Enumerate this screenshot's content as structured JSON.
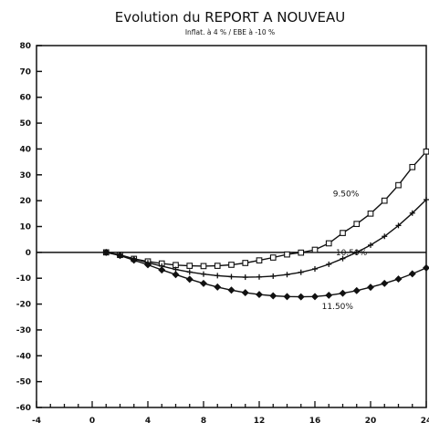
{
  "chart_data": {
    "type": "line",
    "title": "Evolution du REPORT A NOUVEAU",
    "subtitle": "Inflat. à 4 % / EBE à -10 %",
    "xlabel": "",
    "ylabel": "",
    "xlim": [
      -4,
      24
    ],
    "ylim": [
      -60,
      80
    ],
    "xticks": [
      -4,
      0,
      4,
      8,
      12,
      16,
      20,
      24
    ],
    "yticks": [
      -60,
      -50,
      -40,
      -30,
      -20,
      -10,
      0,
      10,
      20,
      30,
      40,
      50,
      60,
      70,
      80
    ],
    "grid": false,
    "legend": "none",
    "series": [
      {
        "name": "9.50%",
        "marker": "square",
        "x": [
          1,
          2,
          3,
          4,
          5,
          6,
          7,
          8,
          9,
          10,
          11,
          12,
          13,
          14,
          15,
          16,
          17,
          18,
          19,
          20,
          21,
          22,
          23,
          24
        ],
        "values": [
          0,
          -1,
          -2.5,
          -3.5,
          -4.3,
          -4.9,
          -5.2,
          -5.3,
          -5.2,
          -4.8,
          -4.1,
          -3.1,
          -2,
          -0.8,
          -0.1,
          1,
          3.5,
          7.5,
          11,
          15,
          20,
          26,
          33,
          39
        ]
      },
      {
        "name": "10.50%",
        "marker": "plus",
        "x": [
          1,
          2,
          3,
          4,
          5,
          6,
          7,
          8,
          9,
          10,
          11,
          12,
          13,
          14,
          15,
          16,
          17,
          18,
          19,
          20,
          21,
          22,
          23,
          24
        ],
        "values": [
          0,
          -1,
          -2.5,
          -4,
          -5.3,
          -6.6,
          -7.6,
          -8.4,
          -9,
          -9.4,
          -9.6,
          -9.5,
          -9.2,
          -8.6,
          -7.7,
          -6.4,
          -4.6,
          -2.4,
          0,
          2.8,
          6.2,
          10.4,
          15.2,
          20.4
        ]
      },
      {
        "name": "11.50%",
        "marker": "diamond",
        "x": [
          1,
          2,
          3,
          4,
          5,
          6,
          7,
          8,
          9,
          10,
          11,
          12,
          13,
          14,
          15,
          16,
          17,
          18,
          19,
          20,
          21,
          22,
          23,
          24
        ],
        "values": [
          0,
          -1.2,
          -3,
          -4.8,
          -6.8,
          -8.6,
          -10.4,
          -12,
          -13.4,
          -14.6,
          -15.6,
          -16.3,
          -16.8,
          -17.1,
          -17.2,
          -17.1,
          -16.6,
          -15.8,
          -14.8,
          -13.5,
          -12,
          -10.3,
          -8.3,
          -6
        ]
      }
    ],
    "annotations": [
      {
        "text": "9.50%",
        "series": "9.50%"
      },
      {
        "text": "10.50%",
        "series": "10.50%"
      },
      {
        "text": "11.50%",
        "series": "11.50%"
      }
    ]
  }
}
